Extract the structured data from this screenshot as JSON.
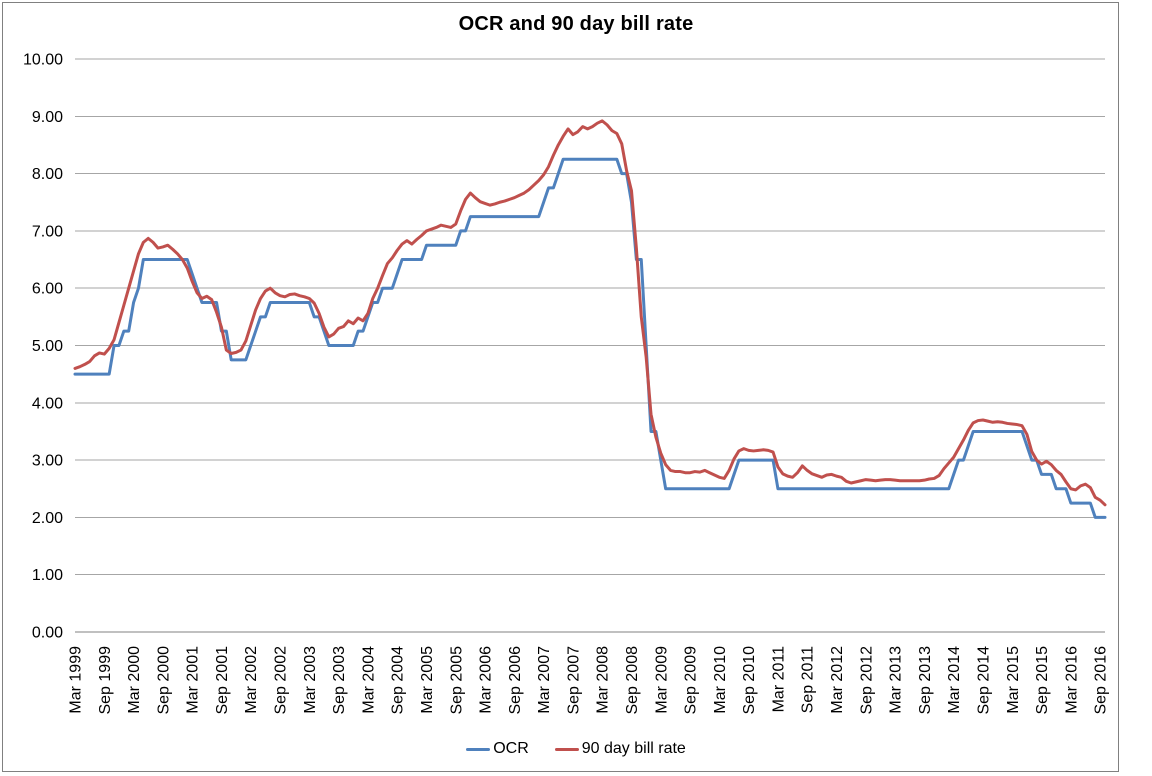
{
  "title": "OCR and 90 day bill rate",
  "legend": {
    "items": [
      {
        "label": "OCR",
        "color": "#4F81BD"
      },
      {
        "label": "90 day bill rate",
        "color": "#C0504D"
      }
    ]
  },
  "colors": {
    "gridline": "#A6A6A6",
    "axis_line": "#808080",
    "frame_border": "#808080",
    "text": "#000000",
    "background": "#FFFFFF"
  },
  "axes": {
    "y_tick_labels": [
      "0.00",
      "1.00",
      "2.00",
      "3.00",
      "4.00",
      "5.00",
      "6.00",
      "7.00",
      "8.00",
      "9.00",
      "10.00"
    ],
    "x_tick_labels": [
      "Mar 1999",
      "Sep 1999",
      "Mar 2000",
      "Sep 2000",
      "Mar 2001",
      "Sep 2001",
      "Mar 2002",
      "Sep 2002",
      "Mar 2003",
      "Sep 2003",
      "Mar 2004",
      "Sep 2004",
      "Mar 2005",
      "Sep 2005",
      "Mar 2006",
      "Sep 2006",
      "Mar 2007",
      "Sep 2007",
      "Mar 2008",
      "Sep 2008",
      "Mar 2009",
      "Sep 2009",
      "Mar 2010",
      "Sep 2010",
      "Mar 2011",
      "Sep 2011",
      "Mar 2012",
      "Sep 2012",
      "Mar 2013",
      "Sep 2013",
      "Mar 2014",
      "Sep 2014",
      "Mar 2015",
      "Sep 2015",
      "Mar 2016",
      "Sep 2016"
    ]
  },
  "chart_data": {
    "type": "line",
    "title": "OCR and 90 day bill rate",
    "x_unit": "monthly",
    "x_start": "Mar 1999",
    "x_end": "Oct 2016",
    "x_tick_every_n_points": 6,
    "ylim": [
      0,
      10
    ],
    "y_tick_step": 1,
    "grid": "horizontal",
    "legend_position": "bottom",
    "series": [
      {
        "name": "OCR",
        "color": "#4F81BD",
        "values": [
          4.5,
          4.5,
          4.5,
          4.5,
          4.5,
          4.5,
          4.5,
          4.5,
          5.0,
          5.0,
          5.25,
          5.25,
          5.75,
          6.0,
          6.5,
          6.5,
          6.5,
          6.5,
          6.5,
          6.5,
          6.5,
          6.5,
          6.5,
          6.5,
          6.25,
          6.0,
          5.75,
          5.75,
          5.75,
          5.75,
          5.25,
          5.25,
          4.75,
          4.75,
          4.75,
          4.75,
          5.0,
          5.25,
          5.5,
          5.5,
          5.75,
          5.75,
          5.75,
          5.75,
          5.75,
          5.75,
          5.75,
          5.75,
          5.75,
          5.5,
          5.5,
          5.25,
          5.0,
          5.0,
          5.0,
          5.0,
          5.0,
          5.0,
          5.25,
          5.25,
          5.5,
          5.75,
          5.75,
          6.0,
          6.0,
          6.0,
          6.25,
          6.5,
          6.5,
          6.5,
          6.5,
          6.5,
          6.75,
          6.75,
          6.75,
          6.75,
          6.75,
          6.75,
          6.75,
          7.0,
          7.0,
          7.25,
          7.25,
          7.25,
          7.25,
          7.25,
          7.25,
          7.25,
          7.25,
          7.25,
          7.25,
          7.25,
          7.25,
          7.25,
          7.25,
          7.25,
          7.5,
          7.75,
          7.75,
          8.0,
          8.25,
          8.25,
          8.25,
          8.25,
          8.25,
          8.25,
          8.25,
          8.25,
          8.25,
          8.25,
          8.25,
          8.25,
          8.0,
          8.0,
          7.5,
          6.5,
          6.5,
          5.0,
          3.5,
          3.5,
          3.0,
          2.5,
          2.5,
          2.5,
          2.5,
          2.5,
          2.5,
          2.5,
          2.5,
          2.5,
          2.5,
          2.5,
          2.5,
          2.5,
          2.5,
          2.75,
          3.0,
          3.0,
          3.0,
          3.0,
          3.0,
          3.0,
          3.0,
          3.0,
          2.5,
          2.5,
          2.5,
          2.5,
          2.5,
          2.5,
          2.5,
          2.5,
          2.5,
          2.5,
          2.5,
          2.5,
          2.5,
          2.5,
          2.5,
          2.5,
          2.5,
          2.5,
          2.5,
          2.5,
          2.5,
          2.5,
          2.5,
          2.5,
          2.5,
          2.5,
          2.5,
          2.5,
          2.5,
          2.5,
          2.5,
          2.5,
          2.5,
          2.5,
          2.5,
          2.5,
          2.75,
          3.0,
          3.0,
          3.25,
          3.5,
          3.5,
          3.5,
          3.5,
          3.5,
          3.5,
          3.5,
          3.5,
          3.5,
          3.5,
          3.5,
          3.25,
          3.0,
          3.0,
          2.75,
          2.75,
          2.75,
          2.5,
          2.5,
          2.5,
          2.25,
          2.25,
          2.25,
          2.25,
          2.25,
          2.0,
          2.0,
          2.0
        ]
      },
      {
        "name": "90 day bill rate",
        "color": "#C0504D",
        "values": [
          4.6,
          4.63,
          4.67,
          4.72,
          4.82,
          4.87,
          4.85,
          4.95,
          5.1,
          5.4,
          5.7,
          6.0,
          6.3,
          6.6,
          6.8,
          6.87,
          6.8,
          6.7,
          6.72,
          6.75,
          6.68,
          6.6,
          6.5,
          6.35,
          6.12,
          5.92,
          5.82,
          5.86,
          5.8,
          5.58,
          5.32,
          4.92,
          4.86,
          4.88,
          4.92,
          5.08,
          5.35,
          5.62,
          5.82,
          5.95,
          6.0,
          5.92,
          5.87,
          5.85,
          5.89,
          5.9,
          5.87,
          5.85,
          5.82,
          5.74,
          5.56,
          5.32,
          5.15,
          5.2,
          5.3,
          5.33,
          5.43,
          5.38,
          5.48,
          5.43,
          5.56,
          5.82,
          6.0,
          6.22,
          6.43,
          6.53,
          6.66,
          6.77,
          6.83,
          6.77,
          6.85,
          6.92,
          7.0,
          7.03,
          7.06,
          7.1,
          7.08,
          7.06,
          7.12,
          7.35,
          7.55,
          7.66,
          7.58,
          7.51,
          7.48,
          7.45,
          7.47,
          7.5,
          7.52,
          7.55,
          7.58,
          7.62,
          7.66,
          7.72,
          7.8,
          7.88,
          7.98,
          8.12,
          8.32,
          8.5,
          8.65,
          8.78,
          8.68,
          8.73,
          8.82,
          8.78,
          8.82,
          8.88,
          8.92,
          8.85,
          8.75,
          8.7,
          8.52,
          8.05,
          7.7,
          6.7,
          5.5,
          4.8,
          3.8,
          3.4,
          3.12,
          2.92,
          2.82,
          2.8,
          2.8,
          2.78,
          2.78,
          2.8,
          2.79,
          2.82,
          2.78,
          2.74,
          2.7,
          2.68,
          2.82,
          3.02,
          3.16,
          3.2,
          3.17,
          3.16,
          3.17,
          3.18,
          3.17,
          3.14,
          2.88,
          2.76,
          2.72,
          2.7,
          2.78,
          2.9,
          2.82,
          2.76,
          2.73,
          2.7,
          2.74,
          2.75,
          2.72,
          2.7,
          2.63,
          2.6,
          2.62,
          2.64,
          2.66,
          2.65,
          2.64,
          2.65,
          2.66,
          2.66,
          2.65,
          2.64,
          2.64,
          2.64,
          2.64,
          2.64,
          2.65,
          2.67,
          2.68,
          2.73,
          2.85,
          2.95,
          3.05,
          3.2,
          3.35,
          3.52,
          3.65,
          3.69,
          3.7,
          3.68,
          3.66,
          3.67,
          3.66,
          3.64,
          3.63,
          3.62,
          3.6,
          3.45,
          3.15,
          3.0,
          2.93,
          2.98,
          2.92,
          2.82,
          2.75,
          2.62,
          2.5,
          2.48,
          2.55,
          2.58,
          2.52,
          2.35,
          2.3,
          2.22
        ]
      }
    ]
  }
}
